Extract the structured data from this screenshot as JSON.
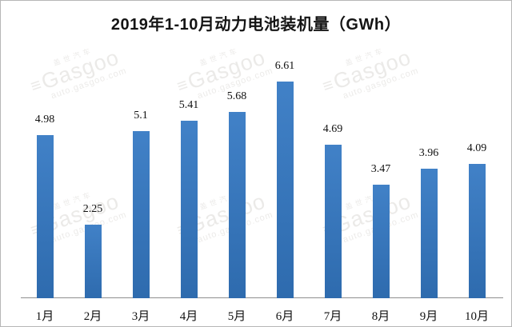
{
  "title": "2019年1-10月动力电池装机量（GWh）",
  "watermark": {
    "brand_cn": "盖世汽车",
    "logo_glyph": "≡",
    "brand": "Gasgoo",
    "url": "auto.gasgoo.com"
  },
  "colors": {
    "bar_top": "#4181c7",
    "bar_bottom": "#2e6bae",
    "axis": "#8f8f8f",
    "label": "#111111",
    "watermark": "#8d867c"
  },
  "chart_data": {
    "type": "bar",
    "title": "2019年1-10月动力电池装机量（GWh）",
    "categories": [
      "1月",
      "2月",
      "3月",
      "4月",
      "5月",
      "6月",
      "7月",
      "8月",
      "9月",
      "10月"
    ],
    "values": [
      4.98,
      2.25,
      5.1,
      5.41,
      5.68,
      6.61,
      4.69,
      3.47,
      3.96,
      4.09
    ],
    "xlabel": "",
    "ylabel": "",
    "ylim": [
      0,
      7.3
    ],
    "grid": false,
    "legend": false,
    "data_labels": true,
    "bar_color": "#3876bd"
  }
}
